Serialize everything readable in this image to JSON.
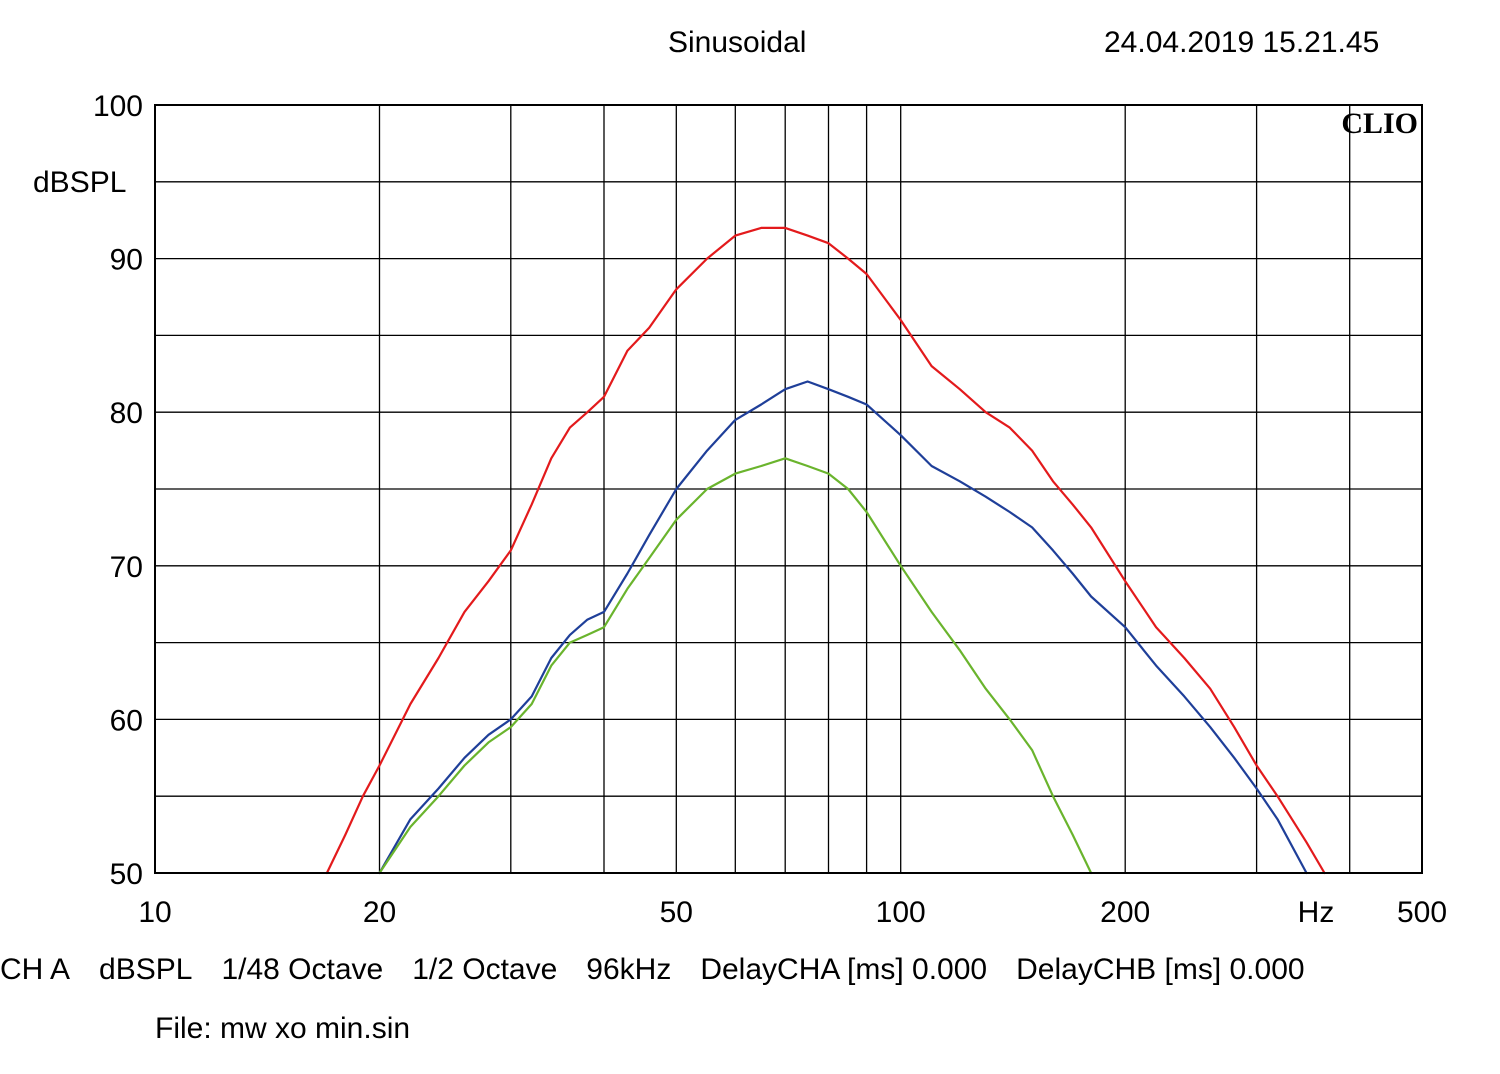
{
  "header": {
    "title": "Sinusoidal",
    "timestamp": "24.04.2019 15.21.45"
  },
  "brand": "CLIO",
  "chart_data": {
    "type": "line",
    "title": "Sinusoidal",
    "ylabel": "dBSPL",
    "xlabel": "Hz",
    "xscale": "log",
    "xlim": [
      10,
      500
    ],
    "ylim": [
      50,
      100
    ],
    "x_ticks": [
      10,
      20,
      50,
      100,
      200,
      500
    ],
    "x_tick_labels": [
      "10",
      "20",
      "50",
      "100",
      "200",
      "500"
    ],
    "y_ticks": [
      50,
      60,
      70,
      80,
      90,
      100
    ],
    "y_tick_labels": [
      "50",
      "60",
      "70",
      "80",
      "90",
      "100"
    ],
    "grid": true,
    "series": [
      {
        "color": "#e31a1c",
        "x": [
          17,
          18,
          19,
          20,
          22,
          24,
          26,
          28,
          30,
          32,
          34,
          36,
          38,
          40,
          43,
          46,
          50,
          55,
          60,
          65,
          70,
          75,
          80,
          85,
          90,
          100,
          110,
          120,
          130,
          140,
          150,
          160,
          170,
          180,
          200,
          220,
          240,
          260,
          280,
          300,
          320,
          350,
          370
        ],
        "y": [
          50,
          52.5,
          55,
          57,
          61,
          64,
          67,
          69,
          71,
          74,
          77,
          79,
          80,
          81,
          84,
          85.5,
          88,
          90,
          91.5,
          92,
          92,
          91.5,
          91,
          90,
          89,
          86,
          83,
          81.5,
          80,
          79,
          77.5,
          75.5,
          74,
          72.5,
          69,
          66,
          64,
          62,
          59.5,
          57,
          55,
          52,
          50
        ]
      },
      {
        "color": "#1f3f99",
        "x": [
          20,
          22,
          24,
          26,
          28,
          30,
          32,
          34,
          36,
          38,
          40,
          43,
          46,
          50,
          55,
          60,
          65,
          70,
          75,
          80,
          85,
          90,
          100,
          110,
          120,
          130,
          140,
          150,
          160,
          170,
          180,
          200,
          220,
          240,
          260,
          280,
          300,
          320,
          350
        ],
        "y": [
          50,
          53.5,
          55.5,
          57.5,
          59,
          60,
          61.5,
          64,
          65.5,
          66.5,
          67,
          69.5,
          72,
          75,
          77.5,
          79.5,
          80.5,
          81.5,
          82,
          81.5,
          81,
          80.5,
          78.5,
          76.5,
          75.5,
          74.5,
          73.5,
          72.5,
          71,
          69.5,
          68,
          66,
          63.5,
          61.5,
          59.5,
          57.5,
          55.5,
          53.5,
          50
        ]
      },
      {
        "color": "#6ab42d",
        "x": [
          20,
          22,
          24,
          26,
          28,
          30,
          32,
          34,
          36,
          38,
          40,
          43,
          46,
          50,
          55,
          60,
          65,
          70,
          75,
          80,
          85,
          90,
          100,
          110,
          120,
          130,
          140,
          150,
          160,
          170,
          180
        ],
        "y": [
          50,
          53,
          55,
          57,
          58.5,
          59.5,
          61,
          63.5,
          65,
          65.5,
          66,
          68.5,
          70.5,
          73,
          75,
          76,
          76.5,
          77,
          76.5,
          76,
          75,
          73.5,
          70,
          67,
          64.5,
          62,
          60,
          58,
          55,
          52.5,
          50
        ]
      }
    ]
  },
  "footer": {
    "channel": "CH A",
    "unit": "dBSPL",
    "smoothing": "1/48 Octave",
    "resolution": "1/2 Octave",
    "sample_rate": "96kHz",
    "delay_a": "DelayCHA [ms] 0.000",
    "delay_b": "DelayCHB [ms] 0.000",
    "file": "File: mw xo min.sin"
  }
}
